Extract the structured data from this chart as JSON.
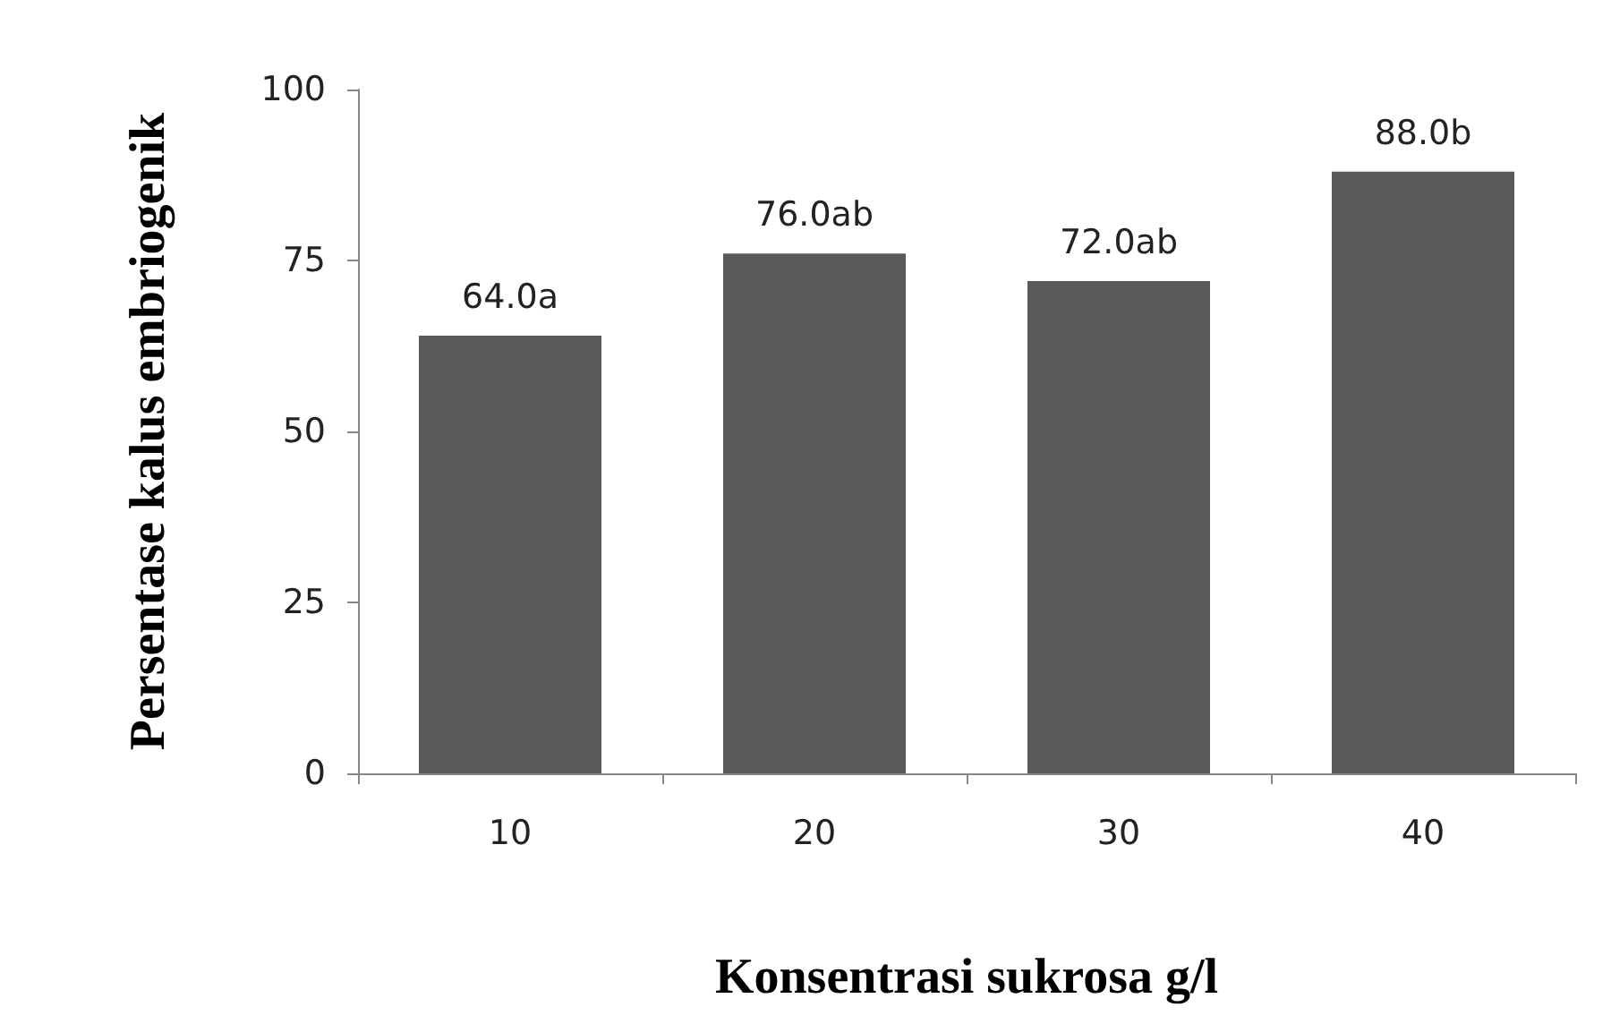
{
  "chart_data": {
    "type": "bar",
    "xlabel": "Konsentrasi sukrosa g/l",
    "ylabel": "Persentase kalus embriogenik",
    "categories": [
      "10",
      "20",
      "30",
      "40"
    ],
    "values": [
      64.0,
      76.0,
      72.0,
      88.0
    ],
    "value_labels": [
      "64.0a",
      "76.0ab",
      "72.0ab",
      "88.0b"
    ],
    "color": "#595959",
    "ylim": [
      0,
      100
    ],
    "yticks": [
      0,
      25,
      50,
      75,
      100
    ],
    "grid": false
  }
}
